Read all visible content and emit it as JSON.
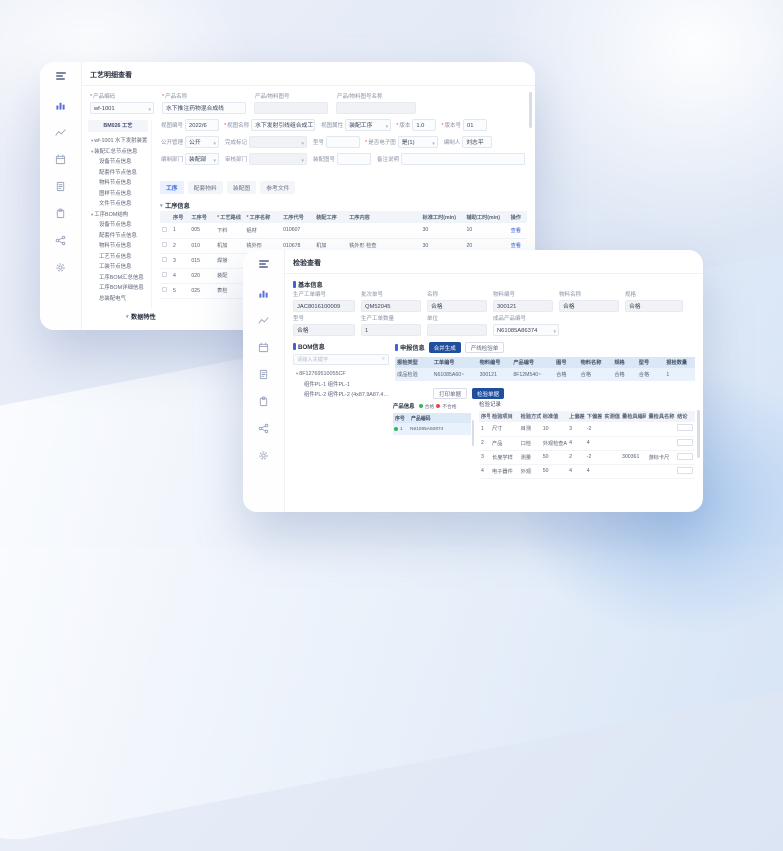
{
  "colors": {
    "accent": "#3c63d8",
    "primary_button": "#1f4e9d",
    "ok_dot": "#35b558",
    "ng_dot": "#e5484d",
    "active_icon": "#5b6fe0"
  },
  "window_a": {
    "title": "工艺明细查看",
    "top_fields": [
      {
        "star": "*",
        "label": "产品编码",
        "value": "wf-1001"
      },
      {
        "star": "*",
        "label": "产品名称",
        "value": "水下推注药物混合成线"
      },
      {
        "label": "产品/物料图号",
        "value": ""
      },
      {
        "label": "产品/物料图号名称",
        "value": ""
      }
    ],
    "panel_header": "BM026 工艺",
    "tree": [
      {
        "t": "wf-1001 水下发射装置",
        "lvl": 0,
        "caret": "down"
      },
      {
        "t": "装配汇总节点信息",
        "lvl": 0,
        "caret": "down"
      },
      {
        "t": "设备节点信息",
        "lvl": 1
      },
      {
        "t": "配套件节点信息",
        "lvl": 1
      },
      {
        "t": "物料节点信息",
        "lvl": 1
      },
      {
        "t": "图样节点信息",
        "lvl": 1
      },
      {
        "t": "文件节点信息",
        "lvl": 1
      },
      {
        "t": "工序BOM结构",
        "lvl": 0,
        "caret": "down"
      },
      {
        "t": "设备节点信息",
        "lvl": 1
      },
      {
        "t": "配套件节点信息",
        "lvl": 1
      },
      {
        "t": "物料节点信息",
        "lvl": 1
      },
      {
        "t": "工艺节点信息",
        "lvl": 1
      },
      {
        "t": "工装节点信息",
        "lvl": 1
      },
      {
        "t": "工序BOM汇总信息",
        "lvl": 1
      },
      {
        "t": "工序BOM详细信息",
        "lvl": 1
      },
      {
        "t": "总装配电气",
        "lvl": 1
      }
    ],
    "form_rows": [
      [
        {
          "label": "视图编号",
          "value": "2022/6"
        },
        {
          "star": "*",
          "label": "视图名称",
          "value": "水下发射引线组合成工艺W"
        },
        {
          "label": "视图属性",
          "value": "装配工序"
        },
        {
          "star": "*",
          "label": "版本",
          "value": "1.0"
        },
        {
          "star": "*",
          "label": "版本号",
          "value": "01"
        }
      ],
      [
        {
          "label": "公开管理",
          "value": "公开"
        },
        {
          "label": "完成标记",
          "value": ""
        },
        {
          "label": "型号",
          "value": ""
        },
        {
          "star": "*",
          "label": "是否电子图",
          "value": "是(1)"
        },
        {
          "label": "编制人",
          "value": "刘志平"
        }
      ],
      [
        {
          "label": "编制部门",
          "value": "装配部"
        },
        {
          "label": "审核部门",
          "value": ""
        },
        {
          "label": "装配图号",
          "value": ""
        },
        {
          "label": "备注说明",
          "value": ""
        }
      ]
    ],
    "tabs": [
      "工序",
      "配套物料",
      "装配图",
      "参考文件"
    ],
    "process_section": "工序信息",
    "process_table": {
      "headers": [
        "",
        "序号",
        "工序号",
        "*工艺路线",
        "*工序名称",
        "工序代号",
        "装配工序",
        "工序内容",
        "标准工时(min)",
        "辅助工时(min)",
        "操作"
      ],
      "rows": [
        [
          "",
          "1",
          "005",
          "下料",
          "铝材",
          "010607",
          "",
          "",
          "30",
          "10",
          "查看"
        ],
        [
          "",
          "2",
          "010",
          "机加",
          "铣外形",
          "010678",
          "机加",
          "铣外形 检查",
          "30",
          "20",
          "查看"
        ],
        [
          "",
          "3",
          "015",
          "焊接",
          "通风气焊",
          "010612",
          "焊接",
          "",
          "30",
          "10",
          "查看"
        ],
        [
          "",
          "4",
          "020",
          "装配",
          "调试",
          "010618",
          "",
          "",
          "20",
          "10",
          "查看"
        ],
        [
          "",
          "5",
          "025",
          "表检",
          "电气",
          "010625",
          "",
          "",
          "10",
          "10",
          "查看"
        ]
      ]
    },
    "extra_section": "数据特性"
  },
  "window_b": {
    "title": "检验查看",
    "basic_section": "基本信息",
    "basic_rows": [
      [
        {
          "label": "生产工单编号",
          "value": "JAC8016100009"
        },
        {
          "label": "批次单号",
          "value": "QM52045"
        },
        {
          "label": "名称",
          "value": "合格"
        },
        {
          "label": "物料编号",
          "value": "300121"
        },
        {
          "label": "物料名称",
          "value": "合格"
        },
        {
          "label": "规格",
          "value": "合格"
        }
      ],
      [
        {
          "label": "型号",
          "value": "合格"
        },
        {
          "label": "生产工单数量",
          "value": "1"
        },
        {
          "label": "单位",
          "value": ""
        },
        {
          "label": "成品产品编号",
          "value": "N61085A86374"
        }
      ]
    ],
    "bom_section": "BOM信息",
    "bom_search_placeholder": "请输入关键字",
    "bom_tree": [
      {
        "t": "8F12769510055CF",
        "lvl": 0,
        "caret": "down"
      },
      {
        "t": "组件PL-1  组件PL-1",
        "lvl": 1
      },
      {
        "t": "组件PL-2  组件PL-2 (4x87.9A87.4)4B",
        "lvl": 1
      }
    ],
    "declare_section": "申报信息",
    "declare_buttons": {
      "primary": "合并生成",
      "outline": "产线检验单"
    },
    "declare_table": {
      "headers": [
        "报检类型",
        "工单编号",
        "物料编号",
        "产品编号",
        "图号",
        "物料名称",
        "规格",
        "型号",
        "报检数量"
      ],
      "rows": [
        [
          "成品检验",
          "N61085A60~",
          "300121",
          "8F12M540~",
          "合格",
          "合格",
          "合格",
          "合格",
          "1"
        ]
      ]
    },
    "record_buttons": {
      "outline": "打印单据",
      "primary": "检验单据"
    },
    "product_section": "产品信息",
    "legend": {
      "ok": "合格",
      "ng": "不合格"
    },
    "product_table": {
      "col_num": "序号",
      "col_code": "产品编码",
      "row_num": "1",
      "row_code": "N61085A60874"
    },
    "record_title": "检验记录",
    "record_table": {
      "headers": [
        "序号",
        "检验项目",
        "检验方式",
        "标准值",
        "上偏差",
        "下偏差",
        "实测值",
        "量检具编码",
        "量检具名称",
        "结论"
      ],
      "rows": [
        [
          "1",
          "尺寸",
          "目测",
          "10",
          "3",
          "-2",
          "",
          "",
          "",
          ""
        ],
        [
          "2",
          "产品",
          "口检",
          "外观检查A~",
          "4",
          "4",
          "",
          "",
          "",
          ""
        ],
        [
          "3",
          "长度学样",
          "测量",
          "50",
          "2",
          "-2",
          "",
          "300361",
          "游标卡尺",
          ""
        ],
        [
          "4",
          "电子器件",
          "外观",
          "50",
          "4",
          "4",
          "",
          "",
          "",
          ""
        ]
      ]
    }
  }
}
